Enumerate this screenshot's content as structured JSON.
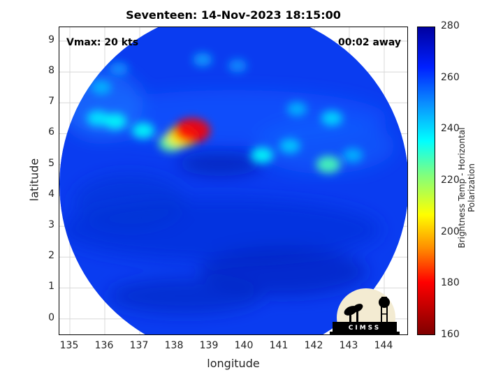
{
  "title": "Seventeen: 14-Nov-2023 18:15:00",
  "annotations": {
    "vmax": "Vmax: 20 kts",
    "time_away": "00:02 away"
  },
  "axes": {
    "xlabel": "longitude",
    "ylabel": "latitude",
    "xlim": [
      134.7,
      144.7
    ],
    "ylim": [
      -0.55,
      9.45
    ],
    "xticks": [
      "135",
      "136",
      "137",
      "138",
      "139",
      "140",
      "141",
      "142",
      "143",
      "144"
    ],
    "yticks": [
      "0",
      "1",
      "2",
      "3",
      "4",
      "5",
      "6",
      "7",
      "8",
      "9"
    ],
    "grid": true
  },
  "colorbar": {
    "label": "Brightness Temp - Horizontal Polarization",
    "range": [
      160,
      280
    ],
    "ticks": [
      "160",
      "180",
      "200",
      "220",
      "240",
      "260",
      "280"
    ],
    "colormap": "jet"
  },
  "colors": {
    "background_disk": "#0a3cf0",
    "warm_shadow": "#0521b8",
    "cool_highlight": "#2cd0f0",
    "hot_spot": "#d42010",
    "frame": "#000000"
  },
  "chart_data": {
    "type": "heatmap",
    "title": "Seventeen: 14-Nov-2023 18:15:00",
    "xlabel": "longitude",
    "ylabel": "latitude",
    "xlim": [
      134.7,
      144.7
    ],
    "ylim": [
      -0.55,
      9.45
    ],
    "value_range": [
      160,
      280
    ],
    "swath_region": {
      "center_lon": 139.65,
      "center_lat": 4.3,
      "radius_deg": 5.0
    },
    "cold_features": [
      {
        "lon": 138.5,
        "lat": 6.1,
        "tb": 180
      },
      {
        "lon": 138.2,
        "lat": 5.9,
        "tb": 205
      },
      {
        "lon": 137.9,
        "lat": 5.7,
        "tb": 225
      },
      {
        "lon": 136.3,
        "lat": 6.4,
        "tb": 235
      },
      {
        "lon": 135.8,
        "lat": 6.5,
        "tb": 238
      },
      {
        "lon": 137.1,
        "lat": 6.1,
        "tb": 235
      },
      {
        "lon": 140.5,
        "lat": 5.3,
        "tb": 235
      },
      {
        "lon": 142.4,
        "lat": 5.0,
        "tb": 228
      },
      {
        "lon": 141.3,
        "lat": 5.6,
        "tb": 242
      },
      {
        "lon": 142.5,
        "lat": 6.5,
        "tb": 240
      },
      {
        "lon": 141.5,
        "lat": 6.8,
        "tb": 245
      },
      {
        "lon": 138.8,
        "lat": 8.4,
        "tb": 248
      },
      {
        "lon": 135.9,
        "lat": 7.5,
        "tb": 245
      },
      {
        "lon": 136.4,
        "lat": 8.1,
        "tb": 250
      },
      {
        "lon": 139.8,
        "lat": 8.2,
        "tb": 250
      },
      {
        "lon": 143.1,
        "lat": 5.3,
        "tb": 245
      }
    ]
  }
}
